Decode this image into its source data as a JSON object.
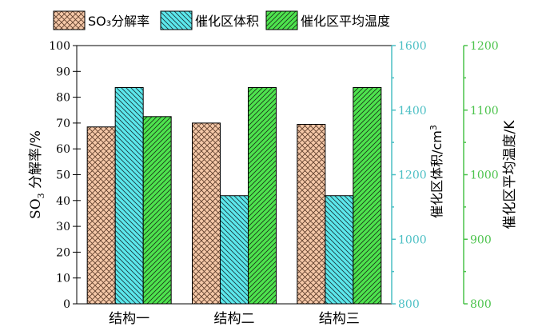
{
  "chart_data": {
    "type": "bar",
    "categories": [
      "结构一",
      "结构二",
      "结构三"
    ],
    "series": [
      {
        "name": "SO₃分解率",
        "axis": "left",
        "color": "#f5c8a8",
        "pattern": "crosshatch",
        "values": [
          68.5,
          70.0,
          69.5
        ]
      },
      {
        "name": "催化区体积",
        "axis": "right1",
        "color": "#5ce8ec",
        "pattern": "hatch-left",
        "values": [
          1470,
          1135,
          1135
        ]
      },
      {
        "name": "催化区平均温度",
        "axis": "right2",
        "color": "#4ee44e",
        "pattern": "hatch-right",
        "values": [
          1090,
          1135,
          1135
        ]
      }
    ],
    "axes": {
      "left": {
        "label_main": "SO",
        "label_sub": "3",
        "label_rest": " 分解率/%",
        "ylim": [
          0,
          100
        ],
        "ticks": [
          "0",
          "10",
          "20",
          "30",
          "40",
          "50",
          "60",
          "70",
          "80",
          "90",
          "100"
        ],
        "color": "#000000"
      },
      "right1": {
        "label_main": "催化区体积/cm",
        "label_sup": "3",
        "ylim": [
          800,
          1600
        ],
        "ticks": [
          "800",
          "1000",
          "1200",
          "1400",
          "1600"
        ],
        "color": "#4bbfc4"
      },
      "right2": {
        "label_main": "催化区平均温度/K",
        "ylim": [
          800,
          1200
        ],
        "ticks": [
          "800",
          "900",
          "1000",
          "1100",
          "1200"
        ],
        "color": "#4cc34c"
      }
    },
    "legend": {
      "placement": "top"
    },
    "grid": false
  }
}
